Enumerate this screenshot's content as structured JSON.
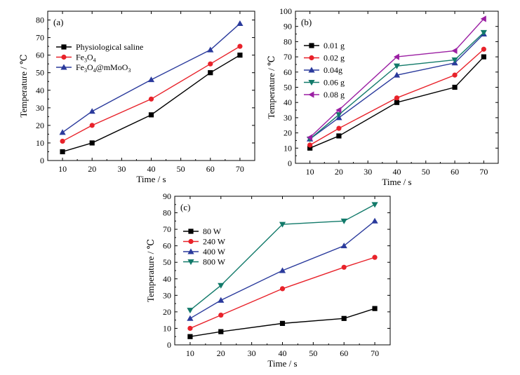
{
  "chart_data": [
    {
      "type": "line",
      "panel_label": "(a)",
      "xlabel": "Time / s",
      "ylabel": "Temperature / ℃",
      "xlim": [
        5,
        75
      ],
      "ylim": [
        0,
        85
      ],
      "xticks": [
        10,
        20,
        30,
        40,
        50,
        60,
        70
      ],
      "yticks": [
        0,
        10,
        20,
        30,
        40,
        50,
        60,
        70,
        80
      ],
      "grid": false,
      "legend_position": "top-left",
      "x": [
        10,
        20,
        40,
        60,
        70
      ],
      "series": [
        {
          "name": "Physiological saline",
          "legend_parts": [
            [
              "Physiological saline",
              ""
            ]
          ],
          "color": "#000000",
          "marker": "square",
          "values": [
            5,
            10,
            26,
            50,
            60
          ]
        },
        {
          "name": "Fe3O4",
          "legend_parts": [
            [
              "Fe",
              ""
            ],
            [
              "3",
              "sub"
            ],
            [
              "O",
              ""
            ],
            [
              "4",
              "sub"
            ]
          ],
          "color": "#e8222a",
          "marker": "circle",
          "values": [
            11,
            20,
            35,
            55,
            65
          ]
        },
        {
          "name": "Fe3O4@mMoO3",
          "legend_parts": [
            [
              "Fe",
              ""
            ],
            [
              "3",
              "sub"
            ],
            [
              "O",
              ""
            ],
            [
              "4",
              "sub"
            ],
            [
              "@mMoO",
              ""
            ],
            [
              "3",
              "sub"
            ]
          ],
          "color": "#2a3a9c",
          "marker": "triangle-up",
          "values": [
            16,
            28,
            46,
            63,
            78
          ]
        }
      ]
    },
    {
      "type": "line",
      "panel_label": "(b)",
      "xlabel": "Time / s",
      "ylabel": "Temperature / ℃",
      "xlim": [
        5,
        75
      ],
      "ylim": [
        0,
        100
      ],
      "xticks": [
        10,
        20,
        30,
        40,
        50,
        60,
        70
      ],
      "yticks": [
        0,
        10,
        20,
        30,
        40,
        50,
        60,
        70,
        80,
        90,
        100
      ],
      "grid": false,
      "legend_position": "top-left",
      "x": [
        10,
        20,
        40,
        60,
        70
      ],
      "series": [
        {
          "name": "0.01 g",
          "legend_parts": [
            [
              "0.01 g",
              ""
            ]
          ],
          "color": "#000000",
          "marker": "square",
          "values": [
            10,
            18,
            40,
            50,
            70
          ]
        },
        {
          "name": "0.02 g",
          "legend_parts": [
            [
              "0.02 g",
              ""
            ]
          ],
          "color": "#e8222a",
          "marker": "circle",
          "values": [
            12,
            23,
            43,
            58,
            75
          ]
        },
        {
          "name": "0.04g",
          "legend_parts": [
            [
              "0.04g",
              ""
            ]
          ],
          "color": "#2a3a9c",
          "marker": "triangle-up",
          "values": [
            16,
            30,
            58,
            66,
            85
          ]
        },
        {
          "name": "0.06 g",
          "legend_parts": [
            [
              "0.06 g",
              ""
            ]
          ],
          "color": "#127a6a",
          "marker": "triangle-down",
          "values": [
            16,
            32,
            64,
            68,
            86
          ]
        },
        {
          "name": "0.08 g",
          "legend_parts": [
            [
              "0.08 g",
              ""
            ]
          ],
          "color": "#9b1fa3",
          "marker": "triangle-left",
          "values": [
            17,
            35,
            70,
            74,
            95
          ]
        }
      ]
    },
    {
      "type": "line",
      "panel_label": "(c)",
      "xlabel": "Time / s",
      "ylabel": "Temperature / ℃",
      "xlim": [
        5,
        75
      ],
      "ylim": [
        0,
        90
      ],
      "xticks": [
        10,
        20,
        30,
        40,
        50,
        60,
        70
      ],
      "yticks": [
        0,
        10,
        20,
        30,
        40,
        50,
        60,
        70,
        80,
        90
      ],
      "grid": false,
      "legend_position": "top-left",
      "x": [
        10,
        20,
        40,
        60,
        70
      ],
      "series": [
        {
          "name": "80 W",
          "legend_parts": [
            [
              "80 W",
              ""
            ]
          ],
          "color": "#000000",
          "marker": "square",
          "values": [
            5,
            8,
            13,
            16,
            22
          ]
        },
        {
          "name": "240 W",
          "legend_parts": [
            [
              "240 W",
              ""
            ]
          ],
          "color": "#e8222a",
          "marker": "circle",
          "values": [
            10,
            18,
            34,
            47,
            53
          ]
        },
        {
          "name": "400 W",
          "legend_parts": [
            [
              "400 W",
              ""
            ]
          ],
          "color": "#2a3a9c",
          "marker": "triangle-up",
          "values": [
            16,
            27,
            45,
            60,
            75
          ]
        },
        {
          "name": "800 W",
          "legend_parts": [
            [
              "800 W",
              ""
            ]
          ],
          "color": "#127a6a",
          "marker": "triangle-down",
          "values": [
            21,
            36,
            73,
            75,
            85
          ]
        }
      ]
    }
  ]
}
